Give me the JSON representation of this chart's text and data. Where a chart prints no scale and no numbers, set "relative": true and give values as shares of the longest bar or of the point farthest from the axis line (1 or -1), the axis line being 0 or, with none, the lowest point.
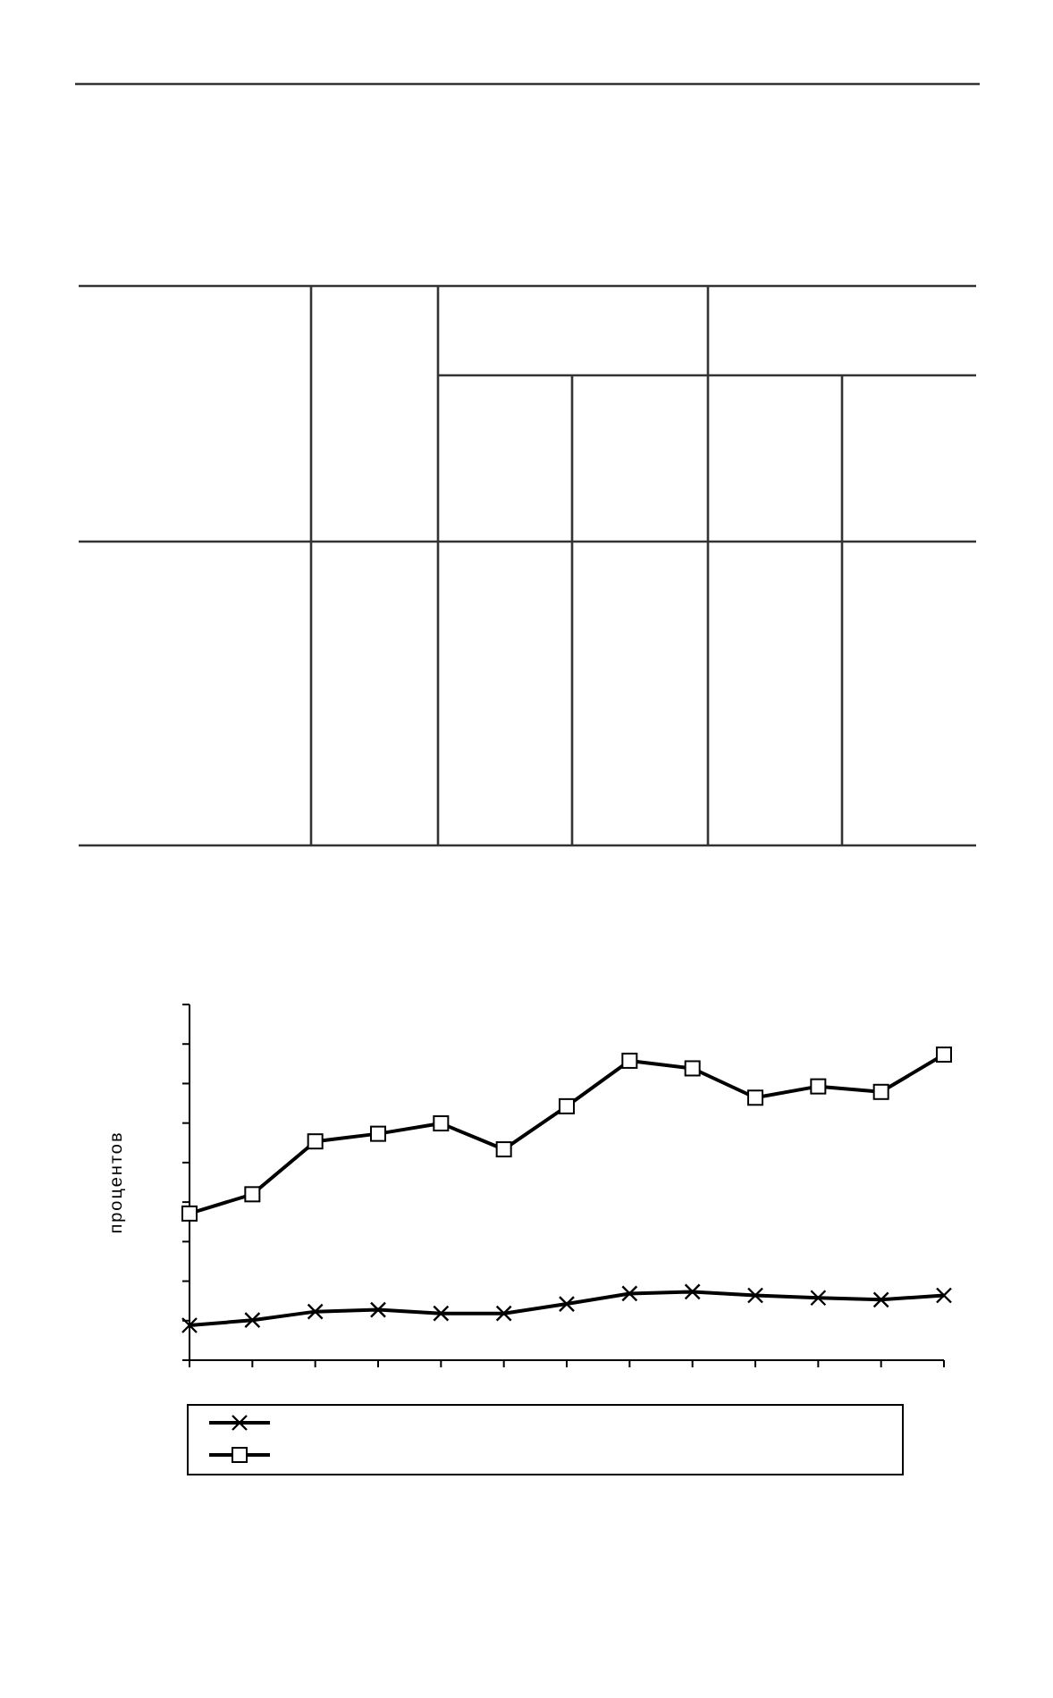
{
  "chart_data": {
    "type": "line",
    "relative": true,
    "ylabel": "процентов",
    "categories": [
      null,
      null,
      null,
      null,
      null,
      null,
      null,
      null,
      null,
      null,
      null,
      null,
      null
    ],
    "series": [
      {
        "color": "#000000",
        "marker": "cross",
        "values": [
          0.114,
          0.131,
          0.159,
          0.165,
          0.153,
          0.153,
          0.184,
          0.218,
          0.224,
          0.212,
          0.204,
          0.198,
          0.212
        ]
      },
      {
        "color": "#000000",
        "marker": "square",
        "values": [
          0.48,
          0.543,
          0.716,
          0.741,
          0.775,
          0.69,
          0.831,
          0.98,
          0.955,
          0.859,
          0.896,
          0.878,
          1
        ]
      }
    ],
    "line_style": "solid"
  }
}
